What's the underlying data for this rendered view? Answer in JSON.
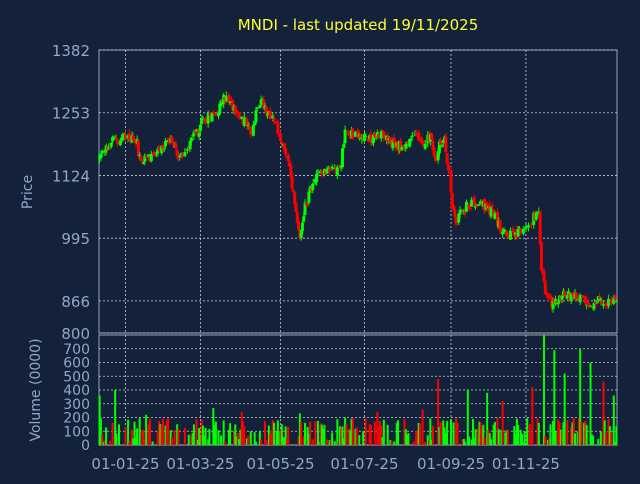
{
  "chart_data": [
    {
      "type": "candlestick",
      "title": "MNDI - last updated 19/11/2025",
      "ylabel": "Price",
      "ylim": [
        800,
        1382
      ],
      "y_ticks": [
        1382,
        1253,
        1124,
        995,
        866,
        800
      ],
      "y_tick_labels": [
        "1382",
        "1253",
        "1124",
        "995",
        "866",
        "800"
      ],
      "x_ticks": [
        "01-01-25",
        "01-03-25",
        "01-05-25",
        "01-07-25",
        "01-09-25",
        "01-11-25"
      ],
      "grid": true,
      "up_color": "#00ff00",
      "down_color": "#ff0000",
      "close_anchors": [
        [
          0,
          1160
        ],
        [
          10,
          1195
        ],
        [
          20,
          1205
        ],
        [
          28,
          1200
        ],
        [
          32,
          1150
        ],
        [
          42,
          1165
        ],
        [
          55,
          1195
        ],
        [
          62,
          1160
        ],
        [
          72,
          1200
        ],
        [
          80,
          1235
        ],
        [
          90,
          1255
        ],
        [
          97,
          1285
        ],
        [
          102,
          1270
        ],
        [
          108,
          1240
        ],
        [
          112,
          1235
        ],
        [
          118,
          1210
        ],
        [
          122,
          1275
        ],
        [
          128,
          1265
        ],
        [
          133,
          1245
        ],
        [
          140,
          1200
        ],
        [
          146,
          1150
        ],
        [
          150,
          1085
        ],
        [
          152,
          1040
        ],
        [
          155,
          990
        ],
        [
          158,
          1050
        ],
        [
          165,
          1110
        ],
        [
          172,
          1135
        ],
        [
          180,
          1140
        ],
        [
          186,
          1135
        ],
        [
          190,
          1215
        ],
        [
          200,
          1205
        ],
        [
          210,
          1200
        ],
        [
          218,
          1215
        ],
        [
          224,
          1190
        ],
        [
          230,
          1185
        ],
        [
          238,
          1185
        ],
        [
          244,
          1215
        ],
        [
          250,
          1190
        ],
        [
          256,
          1205
        ],
        [
          260,
          1165
        ],
        [
          263,
          1190
        ],
        [
          267,
          1195
        ],
        [
          270,
          1130
        ],
        [
          273,
          1065
        ],
        [
          276,
          1025
        ],
        [
          280,
          1050
        ],
        [
          286,
          1065
        ],
        [
          292,
          1065
        ],
        [
          298,
          1060
        ],
        [
          304,
          1050
        ],
        [
          310,
          1020
        ],
        [
          316,
          1005
        ],
        [
          322,
          1000
        ],
        [
          328,
          1010
        ],
        [
          334,
          1030
        ],
        [
          338,
          1045
        ],
        [
          340,
          1040
        ],
        [
          342,
          935
        ],
        [
          345,
          880
        ],
        [
          350,
          860
        ],
        [
          356,
          870
        ],
        [
          362,
          880
        ],
        [
          368,
          875
        ],
        [
          374,
          865
        ],
        [
          380,
          860
        ],
        [
          386,
          870
        ],
        [
          392,
          865
        ],
        [
          400,
          862
        ]
      ],
      "date_ticks_index": [
        20,
        78,
        140,
        205,
        272,
        330
      ],
      "volume_chart": {
        "type": "bar",
        "ylabel": "Volume (0000)",
        "ylim": [
          0,
          800
        ],
        "y_ticks": [
          0,
          100,
          200,
          300,
          400,
          500,
          600,
          700
        ],
        "y_tick_labels": [
          "0",
          "100",
          "200",
          "300",
          "400",
          "500",
          "600",
          "700"
        ],
        "typical_range": [
          20,
          200
        ],
        "peak_values": [
          [
            0,
            360
          ],
          [
            12,
            400
          ],
          [
            36,
            220
          ],
          [
            88,
            270
          ],
          [
            110,
            240
          ],
          [
            155,
            230
          ],
          [
            215,
            240
          ],
          [
            250,
            260
          ],
          [
            262,
            480
          ],
          [
            285,
            400
          ],
          [
            300,
            380
          ],
          [
            312,
            320
          ],
          [
            335,
            420
          ],
          [
            344,
            800
          ],
          [
            352,
            690
          ],
          [
            360,
            520
          ],
          [
            372,
            700
          ],
          [
            380,
            600
          ],
          [
            390,
            460
          ],
          [
            398,
            360
          ]
        ]
      }
    }
  ]
}
